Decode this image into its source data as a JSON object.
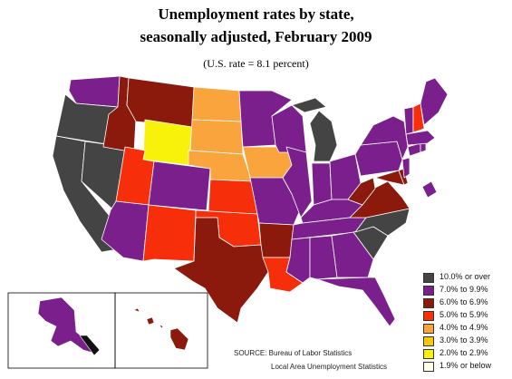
{
  "title_line1": "Unemployment rates by state,",
  "title_line2": "seasonally adjusted, February 2009",
  "subtitle": "(U.S. rate = 8.1 percent)",
  "colors": {
    "c10": "#444444",
    "c7": "#7a1f8c",
    "c6": "#8b1a0c",
    "c5": "#f72e0a",
    "c4": "#f9a43c",
    "c3": "#f8c80a",
    "c2": "#f8f20a",
    "c1": "#fffde6",
    "outline": "#ffffff"
  },
  "legend": [
    {
      "label": "10.0% or over",
      "color": "#444444"
    },
    {
      "label": "7.0% to 9.9%",
      "color": "#7a1f8c"
    },
    {
      "label": "6.0% to 6.9%",
      "color": "#8b1a0c"
    },
    {
      "label": "5.0% to 5.9%",
      "color": "#f72e0a"
    },
    {
      "label": "4.0% to 4.9%",
      "color": "#f9a43c"
    },
    {
      "label": "3.0% to 3.9%",
      "color": "#f8c80a"
    },
    {
      "label": "2.0% to 2.9%",
      "color": "#f8f20a"
    },
    {
      "label": "1.9% or below",
      "color": "#fffde6"
    }
  ],
  "source_line1": "SOURCE:   Bureau of Labor Statistics",
  "source_line2": "Local Area Unemployment Statistics"
}
